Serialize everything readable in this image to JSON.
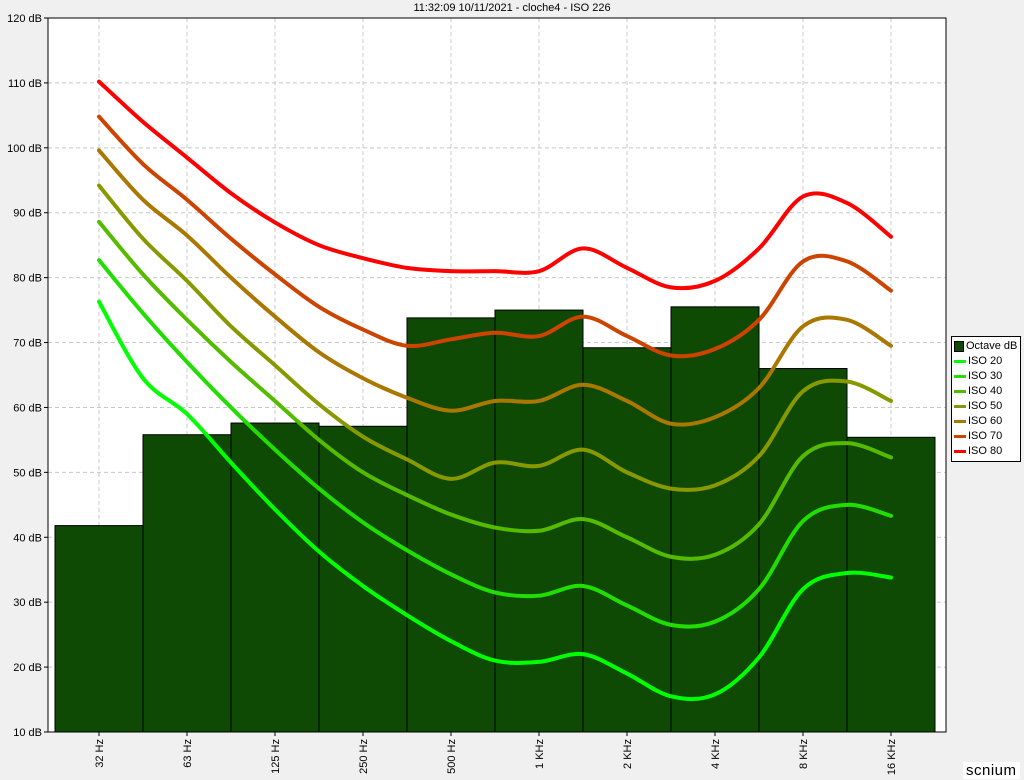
{
  "window": {
    "title": "11:32:09 10/11/2021 - cloche4 - ISO 226"
  },
  "chart_data": {
    "type": "bar",
    "title": "11:32:09 10/11/2021 - cloche4 - ISO 226",
    "xlabel": "",
    "ylabel": "",
    "ylim": [
      10,
      120
    ],
    "yticks": [
      10,
      20,
      30,
      40,
      50,
      60,
      70,
      80,
      90,
      100,
      110,
      120
    ],
    "ytick_unit": "dB",
    "grid": true,
    "legend_position": "right",
    "categories": [
      "32 Hz",
      "63 Hz",
      "125 Hz",
      "250 Hz",
      "500 Hz",
      "1 KHz",
      "2 KHz",
      "4 KHz",
      "8 KHz",
      "16 KHz"
    ],
    "series": [
      {
        "name": "Octave dB",
        "kind": "bar",
        "color": "#0e4a04",
        "values": [
          41.8,
          55.8,
          57.6,
          57.1,
          73.8,
          75.0,
          69.2,
          75.5,
          66.0,
          55.4
        ]
      }
    ],
    "curves": {
      "x": [
        0,
        0.5,
        1,
        1.5,
        2,
        2.5,
        3,
        3.5,
        4,
        4.5,
        5,
        5.5,
        6,
        6.5,
        7,
        7.5,
        8,
        8.5,
        9
      ],
      "lines": [
        {
          "name": "ISO 20",
          "color": "#00ff00",
          "values": [
            76.3,
            64.5,
            59.0,
            51.5,
            44.3,
            37.8,
            32.5,
            28.0,
            24.0,
            21.0,
            20.8,
            22.0,
            19.0,
            15.5,
            15.8,
            21.5,
            32.0,
            34.5,
            33.8
          ]
        },
        {
          "name": "ISO 30",
          "color": "#22dd00",
          "values": [
            82.7,
            74.5,
            67.0,
            60.0,
            53.5,
            47.5,
            42.3,
            38.0,
            34.3,
            31.5,
            31.0,
            32.5,
            29.5,
            26.5,
            27.0,
            32.0,
            42.5,
            45.0,
            43.3
          ]
        },
        {
          "name": "ISO 40",
          "color": "#55bb00",
          "values": [
            88.6,
            80.5,
            73.5,
            67.0,
            61.0,
            55.0,
            50.0,
            46.5,
            43.5,
            41.5,
            41.0,
            42.8,
            40.0,
            37.0,
            37.3,
            42.0,
            52.5,
            54.5,
            52.3
          ]
        },
        {
          "name": "ISO 50",
          "color": "#889900",
          "values": [
            94.2,
            86.0,
            79.5,
            72.5,
            66.5,
            60.5,
            55.5,
            52.0,
            49.0,
            51.5,
            51.0,
            53.5,
            50.0,
            47.5,
            48.0,
            52.5,
            62.5,
            64.0,
            61.0
          ]
        },
        {
          "name": "ISO 60",
          "color": "#aa7700",
          "values": [
            99.6,
            92.0,
            86.5,
            80.0,
            74.0,
            68.5,
            64.5,
            61.5,
            59.5,
            61.0,
            61.0,
            63.5,
            61.0,
            57.5,
            58.5,
            63.0,
            72.5,
            73.5,
            69.5
          ]
        },
        {
          "name": "ISO 70",
          "color": "#cc4400",
          "values": [
            104.8,
            97.5,
            92.0,
            86.0,
            80.5,
            75.5,
            72.0,
            69.5,
            70.5,
            71.5,
            71.0,
            74.0,
            71.0,
            68.0,
            69.0,
            73.5,
            82.5,
            82.5,
            78.0
          ]
        },
        {
          "name": "ISO 80",
          "color": "#ff0000",
          "values": [
            110.2,
            104.0,
            98.5,
            93.0,
            88.5,
            85.0,
            83.0,
            81.5,
            81.0,
            81.0,
            81.0,
            84.5,
            81.5,
            78.5,
            79.5,
            84.5,
            92.5,
            91.5,
            86.3
          ]
        }
      ]
    }
  },
  "watermark": "scnium"
}
